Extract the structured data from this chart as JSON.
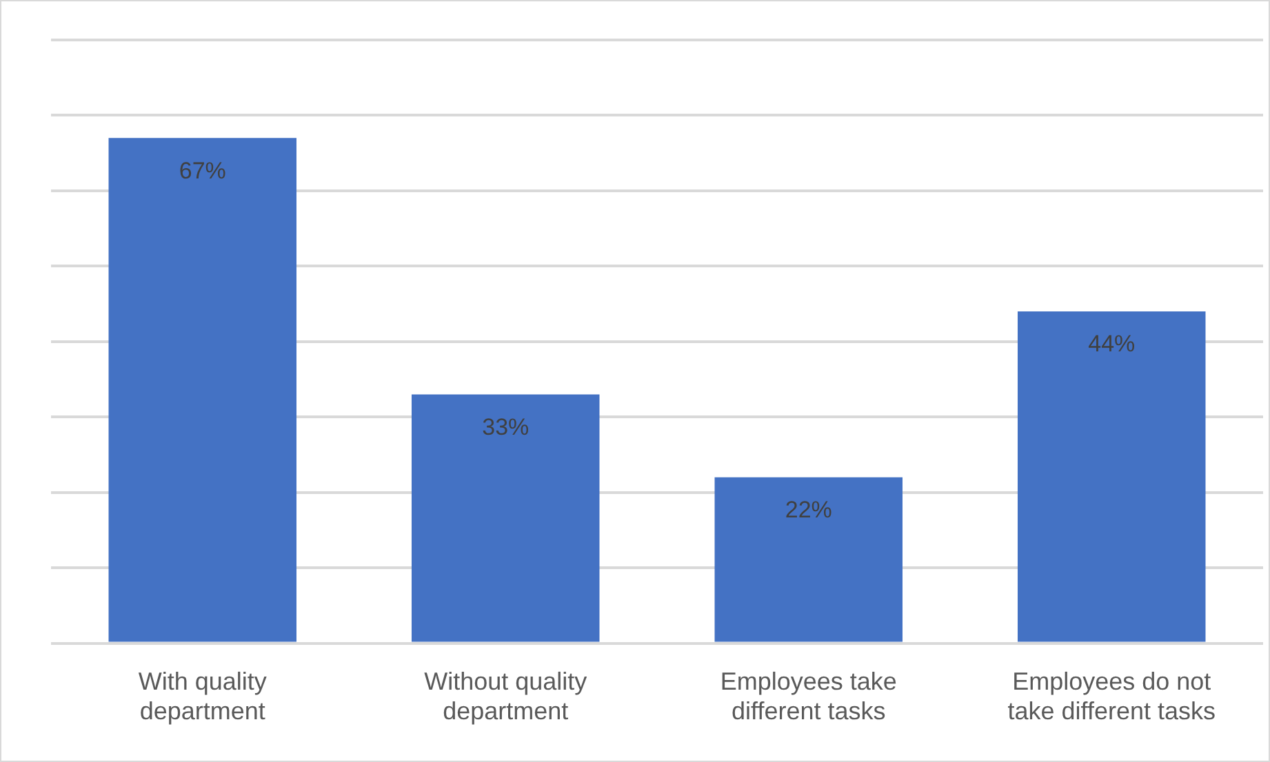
{
  "chart_data": {
    "type": "bar",
    "categories": [
      "With quality department",
      "Without quality department",
      "Employees take different tasks",
      "Employees do not take different tasks"
    ],
    "values": [
      67,
      33,
      22,
      44
    ],
    "value_labels": [
      "67%",
      "33%",
      "22%",
      "44%"
    ],
    "color": "#4472c4",
    "ylim": [
      0,
      80
    ],
    "yticks": [
      {
        "value": 0,
        "label": null
      },
      {
        "value": 10,
        "label": null
      },
      {
        "value": 20,
        "label": null
      },
      {
        "value": 30,
        "label": null
      },
      {
        "value": 40,
        "label": null
      },
      {
        "value": 50,
        "label": null
      },
      {
        "value": 60,
        "label": null
      },
      {
        "value": 70,
        "label": null
      },
      {
        "value": 80,
        "label": null
      }
    ],
    "grid": "y",
    "tick_labels": "x",
    "legend": false
  }
}
